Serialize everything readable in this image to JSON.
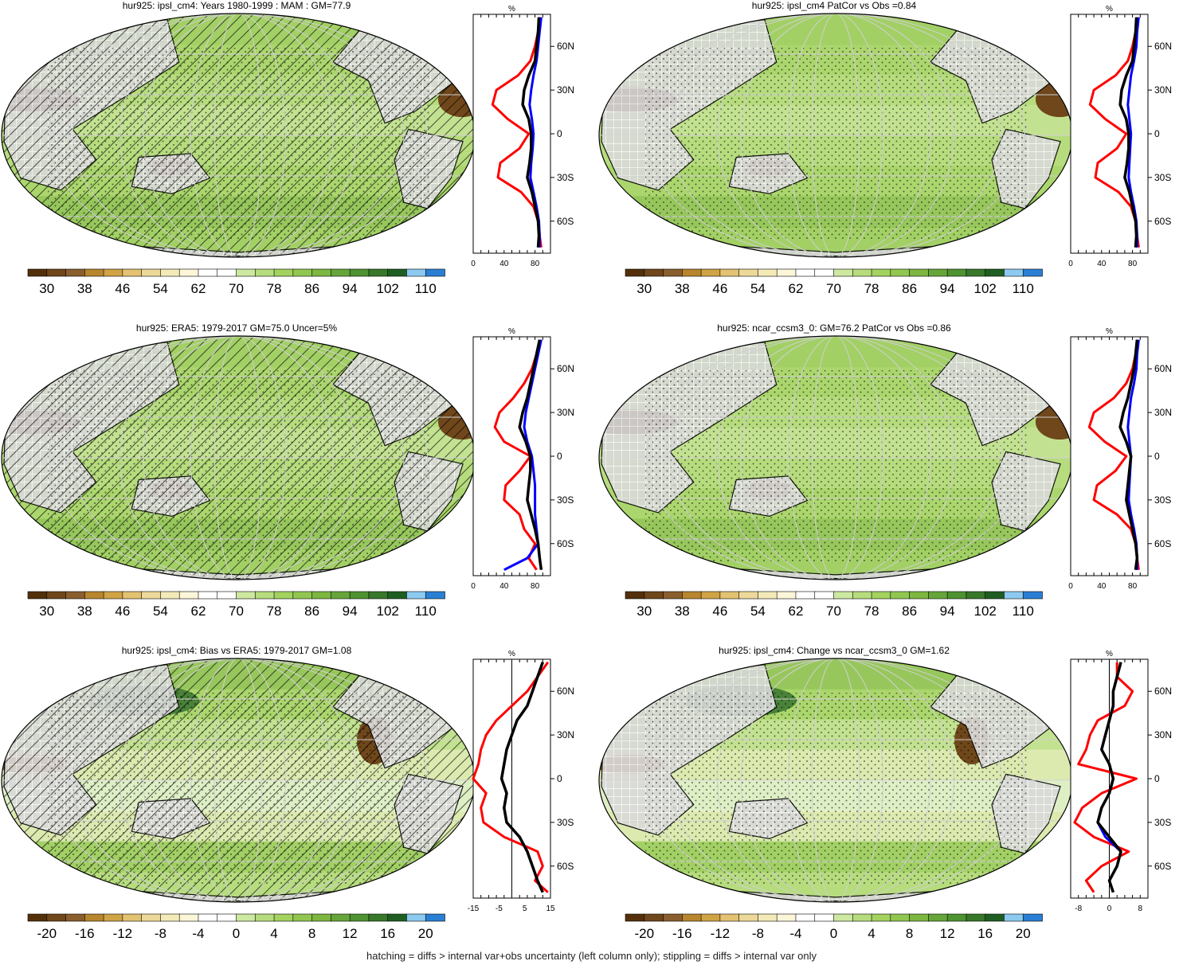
{
  "footer": "hatching = diffs > internal var+obs uncertainty (left column only); stippling = diffs > internal var only",
  "colors": {
    "land_mask": "#d9d9d9",
    "grid": "#ffffff",
    "zonal_model": "#000000",
    "zonal_obs": "#0000ff",
    "zonal_other": "#ff0000"
  },
  "scales": {
    "abs": {
      "labels": [
        "30",
        "38",
        "46",
        "54",
        "62",
        "70",
        "78",
        "86",
        "94",
        "102",
        "110"
      ],
      "colors": [
        "#54300a",
        "#6f471b",
        "#8a5e2d",
        "#b8862f",
        "#d0a445",
        "#e3c272",
        "#ecd899",
        "#f4eab8",
        "#fbf6d8",
        "#ffffff",
        "#ffffff",
        "#cde8a0",
        "#b6dc7e",
        "#a3d25f",
        "#91c751",
        "#7db640",
        "#66a53a",
        "#4f9232",
        "#38782a",
        "#1f5e22",
        "#8ccaf0",
        "#2a7fd4"
      ]
    },
    "diff": {
      "labels": [
        "-20",
        "-16",
        "-12",
        "-8",
        "-4",
        "0",
        "4",
        "8",
        "12",
        "16",
        "20"
      ],
      "colors": [
        "#54300a",
        "#6f471b",
        "#8a5e2d",
        "#b8862f",
        "#d0a445",
        "#e3c272",
        "#ecd899",
        "#f4eab8",
        "#fbf6d8",
        "#ffffff",
        "#ffffff",
        "#cde8a0",
        "#b6dc7e",
        "#a3d25f",
        "#91c751",
        "#7db640",
        "#66a53a",
        "#4f9232",
        "#38782a",
        "#1f5e22",
        "#8ccaf0",
        "#2a7fd4"
      ]
    }
  },
  "chart_data": [
    {
      "type": "heatmap",
      "title": "hur925: ipsl_cm4: Years 1980-1999 : MAM : GM=77.9",
      "scale": "abs",
      "hatched": true,
      "zonal": {
        "unit": "%",
        "xticks": [
          "0",
          "40",
          "80"
        ],
        "xlim": [
          0,
          100
        ],
        "lat_labels": [
          "60N",
          "30N",
          "0",
          "30S",
          "60S"
        ],
        "lat": [
          80,
          70,
          60,
          50,
          40,
          30,
          20,
          10,
          0,
          -10,
          -20,
          -30,
          -40,
          -50,
          -60,
          -70,
          -78
        ],
        "series": [
          {
            "color": "#000000",
            "values": [
              85,
              84,
              82,
              80,
              72,
              66,
              64,
              72,
              75,
              75,
              73,
              70,
              76,
              80,
              84,
              85,
              84
            ]
          },
          {
            "color": "#0000ff",
            "values": [
              88,
              86,
              84,
              82,
              78,
              75,
              73,
              76,
              78,
              77,
              75,
              74,
              78,
              82,
              85,
              86,
              86
            ]
          },
          {
            "color": "#ff0000",
            "values": [
              86,
              84,
              80,
              74,
              58,
              30,
              25,
              45,
              72,
              60,
              35,
              32,
              62,
              78,
              84,
              86,
              88
            ]
          }
        ]
      }
    },
    {
      "type": "heatmap",
      "title": "hur925: ipsl_cm4 PatCor vs Obs =0.84",
      "scale": "abs",
      "hatched": false,
      "zonal": {
        "unit": "%",
        "xticks": [
          "0",
          "40",
          "80"
        ],
        "xlim": [
          0,
          100
        ],
        "lat_labels": [
          "60N",
          "30N",
          "0",
          "30S",
          "60S"
        ],
        "lat": [
          80,
          70,
          60,
          50,
          40,
          30,
          20,
          10,
          0,
          -10,
          -20,
          -30,
          -40,
          -50,
          -60,
          -70,
          -78
        ],
        "series": [
          {
            "color": "#000000",
            "values": [
              85,
              84,
              82,
              80,
              72,
              66,
              64,
              72,
              75,
              75,
              73,
              70,
              76,
              80,
              84,
              85,
              84
            ]
          },
          {
            "color": "#0000ff",
            "values": [
              88,
              86,
              85,
              82,
              78,
              76,
              74,
              76,
              78,
              77,
              76,
              75,
              78,
              82,
              85,
              86,
              86
            ]
          },
          {
            "color": "#ff0000",
            "values": [
              86,
              84,
              80,
              74,
              58,
              30,
              25,
              45,
              72,
              60,
              35,
              32,
              62,
              78,
              84,
              86,
              88
            ]
          }
        ]
      }
    },
    {
      "type": "heatmap",
      "title": "hur925: ERA5: 1979-2017 GM=75.0 Uncer=5%",
      "scale": "abs",
      "hatched": true,
      "zonal": {
        "unit": "%",
        "xticks": [
          "0",
          "40",
          "80"
        ],
        "xlim": [
          0,
          100
        ],
        "lat_labels": [
          "60N",
          "30N",
          "0",
          "30S",
          "60S"
        ],
        "lat": [
          80,
          70,
          60,
          50,
          40,
          30,
          20,
          10,
          0,
          -10,
          -20,
          -30,
          -40,
          -50,
          -60,
          -70,
          -78
        ],
        "series": [
          {
            "color": "#000000",
            "values": [
              86,
              82,
              78,
              74,
              70,
              64,
              60,
              68,
              74,
              74,
              72,
              70,
              75,
              80,
              84,
              86,
              88
            ]
          },
          {
            "color": "#0000ff",
            "values": [
              88,
              84,
              80,
              76,
              72,
              68,
              66,
              70,
              76,
              78,
              80,
              80,
              80,
              82,
              84,
              70,
              40
            ]
          },
          {
            "color": "#ff0000",
            "values": [
              86,
              82,
              76,
              66,
              52,
              34,
              28,
              40,
              74,
              60,
              42,
              40,
              60,
              66,
              80,
              72,
              82
            ]
          }
        ]
      }
    },
    {
      "type": "heatmap",
      "title": "hur925: ncar_ccsm3_0: GM=76.2 PatCor vs Obs =0.86",
      "scale": "abs",
      "hatched": false,
      "zonal": {
        "unit": "%",
        "xticks": [
          "0",
          "40",
          "80"
        ],
        "xlim": [
          0,
          100
        ],
        "lat_labels": [
          "60N",
          "30N",
          "0",
          "30S",
          "60S"
        ],
        "lat": [
          80,
          70,
          60,
          50,
          40,
          30,
          20,
          10,
          0,
          -10,
          -20,
          -30,
          -40,
          -50,
          -60,
          -70,
          -78
        ],
        "series": [
          {
            "color": "#000000",
            "values": [
              86,
              84,
              82,
              78,
              74,
              68,
              64,
              72,
              78,
              76,
              74,
              72,
              76,
              80,
              84,
              86,
              84
            ]
          },
          {
            "color": "#0000ff",
            "values": [
              88,
              86,
              85,
              82,
              78,
              76,
              74,
              76,
              78,
              77,
              76,
              75,
              78,
              82,
              85,
              86,
              86
            ]
          },
          {
            "color": "#ff0000",
            "values": [
              86,
              84,
              80,
              72,
              56,
              30,
              24,
              44,
              72,
              58,
              34,
              30,
              60,
              78,
              84,
              86,
              88
            ]
          }
        ]
      }
    },
    {
      "type": "heatmap",
      "title": "hur925: ipsl_cm4: Bias vs ERA5: 1979-2017 GM=1.08",
      "scale": "diff",
      "hatched": true,
      "zonal": {
        "unit": "%",
        "xticks": [
          "-15",
          "-5",
          "5",
          "15"
        ],
        "xlim": [
          -15,
          15
        ],
        "zero_line": true,
        "lat_labels": [
          "60N",
          "30N",
          "0",
          "30S",
          "60S"
        ],
        "lat": [
          80,
          70,
          60,
          50,
          40,
          30,
          20,
          10,
          0,
          -10,
          -20,
          -30,
          -40,
          -50,
          -60,
          -70,
          -78
        ],
        "series": [
          {
            "color": "#000000",
            "values": [
              12,
              10,
              8,
              6,
              2,
              0,
              -2,
              -3,
              -4,
              -2,
              -3,
              -2,
              3,
              6,
              8,
              10,
              12
            ]
          },
          {
            "color": "#0000ff",
            "values": [
              12,
              10,
              8,
              6,
              2,
              0,
              -2,
              -3,
              -4,
              -2,
              -3,
              -2,
              3,
              6,
              8,
              10,
              12
            ]
          },
          {
            "color": "#ff0000",
            "values": [
              14,
              10,
              6,
              0,
              -6,
              -10,
              -12,
              -13,
              -15,
              -10,
              -12,
              -11,
              -3,
              10,
              12,
              9,
              14
            ]
          }
        ]
      }
    },
    {
      "type": "heatmap",
      "title": "hur925: ipsl_cm4: Change vs ncar_ccsm3_0 GM=1.62",
      "scale": "diff",
      "hatched": false,
      "zonal": {
        "unit": "%",
        "xticks": [
          "-8",
          "0",
          "8"
        ],
        "xlim": [
          -10,
          10
        ],
        "zero_line": true,
        "lat_labels": [
          "60N",
          "30N",
          "0",
          "30S",
          "60S"
        ],
        "lat": [
          80,
          70,
          60,
          50,
          40,
          30,
          20,
          10,
          0,
          -10,
          -20,
          -30,
          -40,
          -50,
          -60,
          -70,
          -78
        ],
        "series": [
          {
            "color": "#000000",
            "values": [
              3,
              2,
              1,
              1,
              0,
              -1,
              -2,
              0,
              1,
              0,
              -2,
              -3,
              0,
              3,
              2,
              0,
              1
            ]
          },
          {
            "color": "#0000ff",
            "values": [
              3,
              2,
              1,
              1,
              0,
              -1,
              -2,
              0,
              1,
              0,
              -2,
              -3,
              -1,
              3,
              2,
              0,
              1
            ]
          },
          {
            "color": "#ff0000",
            "values": [
              2,
              2,
              6,
              4,
              -3,
              -5,
              -6,
              -8,
              7,
              -2,
              -7,
              -9,
              -4,
              5,
              -2,
              -6,
              -4
            ]
          }
        ]
      }
    }
  ]
}
